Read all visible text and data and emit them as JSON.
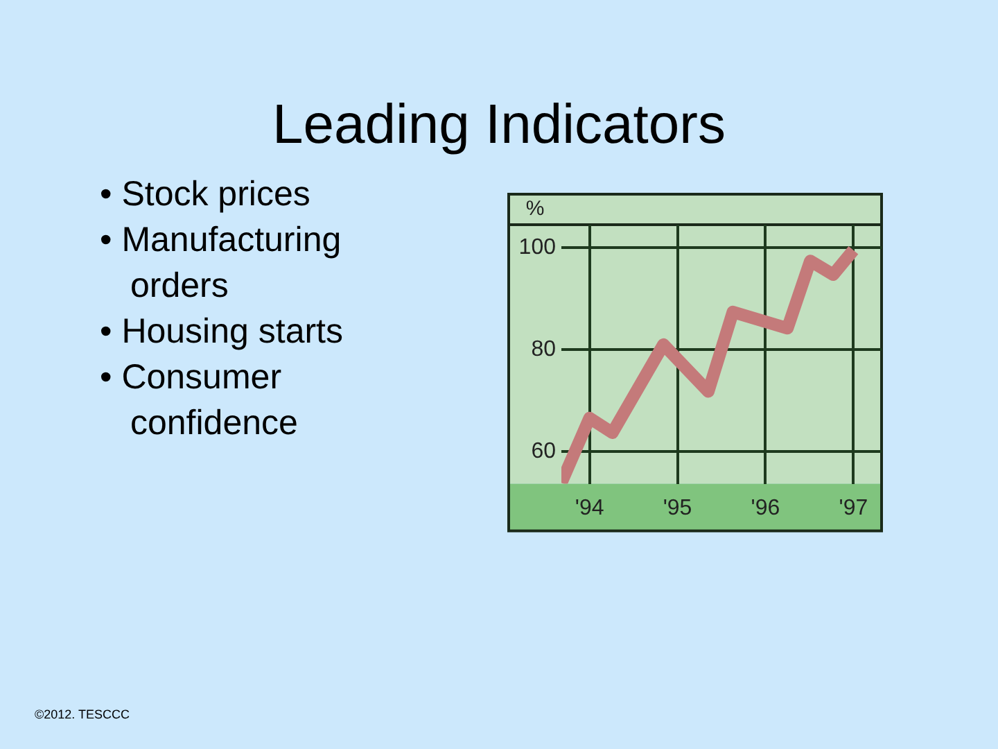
{
  "chart_data": {
    "type": "line",
    "title": "Leading Indicators",
    "ylabel": "%",
    "annotations": [
      "• Stock prices",
      "• Manufacturing orders",
      "• Housing starts",
      "• Consumer confidence",
      "©2012. TESCCC"
    ],
    "x": [
      1993.68,
      1994.0,
      1994.26,
      1994.84,
      1995.35,
      1995.63,
      1996.25,
      1996.51,
      1996.77,
      1997.0
    ],
    "series": [
      {
        "color": "#c47a7a",
        "values": [
          53.9,
          66.6,
          63.7,
          81,
          71.8,
          87.4,
          84.2,
          97.4,
          94.7,
          99.5
        ]
      }
    ],
    "xlim": [
      1993.68,
      1997.32
    ],
    "xticks": [
      {
        "value": 1994,
        "label": "'94"
      },
      {
        "value": 1995,
        "label": "'95"
      },
      {
        "value": 1996,
        "label": "'96"
      },
      {
        "value": 1997,
        "label": "'97"
      }
    ],
    "ylim": [
      53.7,
      104.5
    ],
    "yticks": [
      60,
      80,
      100
    ],
    "grid": true,
    "legend": false,
    "marker": "none",
    "line_style": "solid"
  }
}
